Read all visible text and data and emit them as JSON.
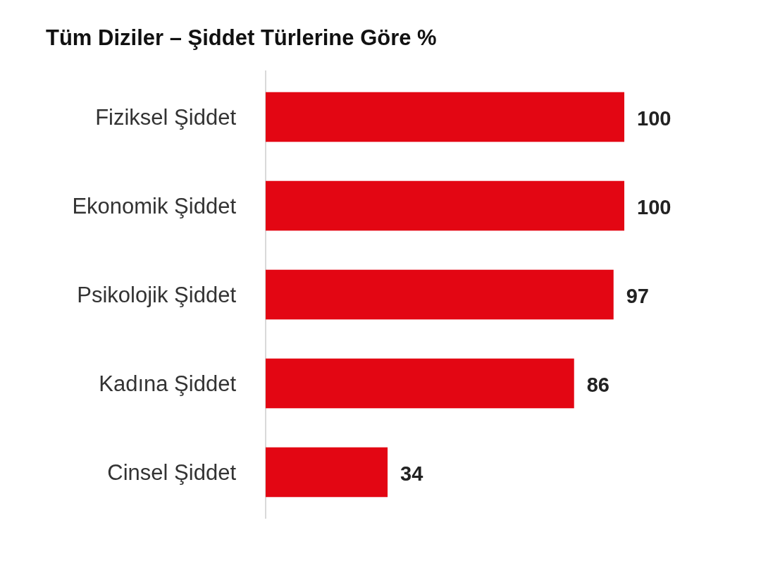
{
  "chart_data": {
    "type": "bar",
    "orientation": "horizontal",
    "title": "Tüm Diziler – Şiddet Türlerine Göre  %",
    "categories": [
      "Fiziksel Şiddet",
      "Ekonomik Şiddet",
      "Psikolojik Şiddet",
      "Kadına Şiddet",
      "Cinsel Şiddet"
    ],
    "values": [
      100,
      100,
      97,
      86,
      34
    ],
    "color": "#e30613",
    "data_labels": true
  }
}
